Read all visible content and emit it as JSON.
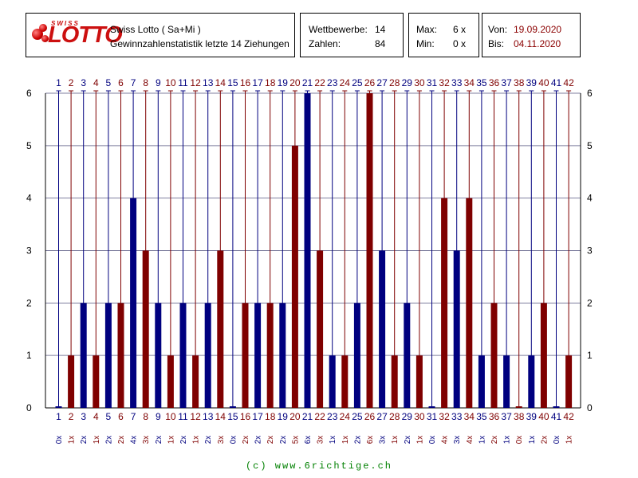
{
  "header": {
    "logo": {
      "swiss": "SWISS",
      "lotto": "LOTTO"
    },
    "title": "Swiss Lotto ( Sa+Mi )",
    "subtitle": "Gewinnzahlenstatistik letzte 14 Ziehungen",
    "stats": {
      "label1": "Wettbewerbe:",
      "value1": "14",
      "label2": "Zahlen:",
      "value2": "84"
    },
    "minmax": {
      "max_label": "Max:",
      "max_value": "6 x",
      "min_label": "Min:",
      "min_value": "0 x"
    },
    "dates": {
      "from_label": "Von:",
      "from_value": "19.09.2020",
      "to_label": "Bis:",
      "to_value": "04.11.2020"
    }
  },
  "footer": "(c) www.6richtige.ch",
  "colors": {
    "blue": "#00007f",
    "red": "#7f0000",
    "grid": "#7f7f9f"
  },
  "chart_data": {
    "type": "bar",
    "categories": [
      "1",
      "2",
      "3",
      "4",
      "5",
      "6",
      "7",
      "8",
      "9",
      "10",
      "11",
      "12",
      "13",
      "14",
      "15",
      "16",
      "17",
      "18",
      "19",
      "20",
      "21",
      "22",
      "23",
      "24",
      "25",
      "26",
      "27",
      "28",
      "29",
      "30",
      "31",
      "32",
      "33",
      "34",
      "35",
      "36",
      "37",
      "38",
      "39",
      "40",
      "41",
      "42"
    ],
    "values": [
      0,
      1,
      2,
      1,
      2,
      2,
      4,
      3,
      2,
      1,
      2,
      1,
      2,
      3,
      0,
      2,
      2,
      2,
      2,
      5,
      6,
      3,
      1,
      1,
      2,
      6,
      3,
      1,
      2,
      1,
      0,
      4,
      3,
      4,
      1,
      2,
      1,
      0,
      1,
      2,
      0,
      1
    ],
    "count_labels": [
      "0x",
      "1x",
      "2x",
      "1x",
      "2x",
      "2x",
      "4x",
      "3x",
      "2x",
      "1x",
      "2x",
      "1x",
      "2x",
      "3x",
      "0x",
      "2x",
      "2x",
      "2x",
      "2x",
      "5x",
      "6x",
      "3x",
      "1x",
      "1x",
      "2x",
      "6x",
      "3x",
      "1x",
      "2x",
      "1x",
      "0x",
      "4x",
      "3x",
      "4x",
      "1x",
      "2x",
      "1x",
      "0x",
      "1x",
      "2x",
      "0x",
      "1x"
    ],
    "y_ticks": [
      "0",
      "1",
      "2",
      "3",
      "4",
      "5",
      "6"
    ],
    "ylim": [
      0,
      6
    ],
    "grid": true
  }
}
